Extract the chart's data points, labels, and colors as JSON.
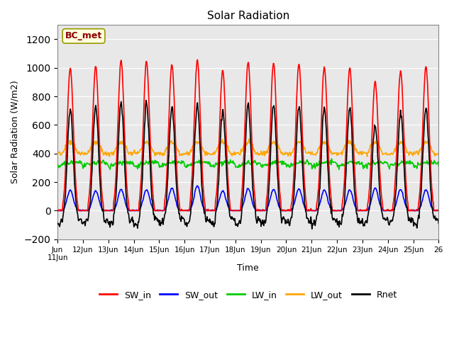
{
  "title": "Solar Radiation",
  "ylabel": "Solar Radiation (W/m2)",
  "xlabel": "Time",
  "ylim": [
    -200,
    1300
  ],
  "yticks": [
    -200,
    0,
    200,
    400,
    600,
    800,
    1000,
    1200
  ],
  "n_days": 15,
  "annotation_text": "BC_met",
  "annotation_color": "#8B0000",
  "annotation_bg": "#FFFFE0",
  "annotation_edge": "#999900",
  "bg_color": "#E8E8E8",
  "series": {
    "SW_in": {
      "color": "#FF0000",
      "lw": 1.2
    },
    "SW_out": {
      "color": "#0000FF",
      "lw": 1.2
    },
    "LW_in": {
      "color": "#00CC00",
      "lw": 1.2
    },
    "LW_out": {
      "color": "#FFA500",
      "lw": 1.2
    },
    "Rnet": {
      "color": "#000000",
      "lw": 1.2
    }
  },
  "xtick_positions": [
    0,
    1,
    2,
    3,
    4,
    5,
    6,
    7,
    8,
    9,
    10,
    11,
    12,
    13,
    14,
    15
  ],
  "xtick_labels": [
    "Jun\n11Jun",
    "12Jun",
    "13Jun",
    "14Jun",
    "15Jun",
    "16Jun",
    "17Jun",
    "18Jun",
    "19Jun",
    "20Jun",
    "21Jun",
    "22Jun",
    "23Jun",
    "24Jun",
    "25Jun",
    "26"
  ],
  "grid_color": "#FFFFFF",
  "grid_lw": 0.8,
  "peaks_SW": [
    1000,
    1010,
    1050,
    1045,
    1025,
    1060,
    980,
    1040,
    1035,
    1030,
    1005,
    1000,
    905,
    980,
    1010
  ],
  "peaks_SW_out": [
    145,
    140,
    150,
    145,
    160,
    175,
    140,
    155,
    150,
    155,
    145,
    145,
    160,
    150,
    145
  ]
}
